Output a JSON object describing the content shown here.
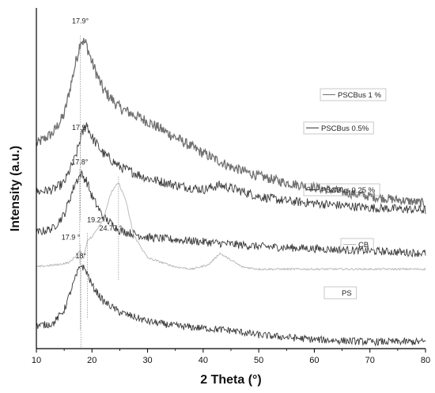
{
  "chart_data": {
    "type": "line",
    "xlabel": "2 Theta (°)",
    "ylabel": "Intensity (a.u.)",
    "xlim": [
      10,
      80
    ],
    "x_ticks": [
      "10",
      "20",
      "30",
      "40",
      "50",
      "60",
      "70",
      "80"
    ],
    "y_ticks_shown": false,
    "grid": false,
    "series": [
      {
        "name": "PSCBus 1 %",
        "color": "#707070",
        "x": [
          10,
          13,
          15,
          17,
          18,
          19,
          20,
          22,
          25,
          30,
          35,
          40,
          45,
          50,
          55,
          60,
          70,
          80
        ],
        "y": [
          9.0,
          9.5,
          10.3,
          12.5,
          13.6,
          13.4,
          12.6,
          11.4,
          10.6,
          10.0,
          9.3,
          8.6,
          8.0,
          7.6,
          7.3,
          7.1,
          6.7,
          6.4
        ]
      },
      {
        "name": "PSCBus 0.5%",
        "color": "#3a3a3a",
        "x": [
          10,
          13,
          15,
          17,
          18,
          19,
          20,
          22,
          25,
          30,
          35,
          40,
          43,
          46,
          50,
          55,
          60,
          70,
          80
        ],
        "y": [
          6.9,
          7.0,
          7.3,
          8.4,
          9.3,
          9.9,
          9.3,
          8.6,
          8.0,
          7.5,
          7.2,
          7.0,
          7.2,
          7.0,
          6.7,
          6.5,
          6.4,
          6.2,
          6.1
        ]
      },
      {
        "name": "PSCBus 0.25 %",
        "color": "#3a3a3a",
        "x": [
          10,
          13,
          15,
          17,
          18,
          19,
          20,
          22,
          25,
          30,
          35,
          40,
          45,
          50,
          60,
          70,
          80
        ],
        "y": [
          5.1,
          5.3,
          5.9,
          7.3,
          7.7,
          7.4,
          6.7,
          5.8,
          5.2,
          4.9,
          4.8,
          4.7,
          4.6,
          4.5,
          4.4,
          4.3,
          4.2
        ]
      },
      {
        "name": "CB",
        "color": "#b5b5b5",
        "x": [
          10,
          14,
          16,
          17.9,
          18.5,
          19.2,
          20,
          22,
          23.5,
          24.77,
          26,
          27.5,
          30,
          35,
          38,
          41,
          43,
          45,
          47,
          50,
          55,
          60,
          70,
          80
        ],
        "y": [
          3.6,
          3.7,
          3.8,
          4.3,
          4.0,
          4.8,
          4.9,
          5.7,
          6.9,
          7.3,
          6.6,
          5.0,
          4.0,
          3.6,
          3.5,
          3.7,
          4.2,
          3.9,
          3.6,
          3.5,
          3.5,
          3.5,
          3.5,
          3.5
        ]
      },
      {
        "name": "PS",
        "color": "#3a3a3a",
        "x": [
          10,
          13,
          15,
          17,
          18,
          19,
          20,
          22,
          25,
          30,
          35,
          40,
          45,
          50,
          60,
          70,
          80
        ],
        "y": [
          1.0,
          1.1,
          1.7,
          3.1,
          3.7,
          3.4,
          2.8,
          2.1,
          1.6,
          1.2,
          1.0,
          0.9,
          0.8,
          0.6,
          0.4,
          0.3,
          0.3
        ]
      }
    ],
    "annotations": [
      {
        "text": "17.9°",
        "x": 17.9,
        "series": "PSCBus 1 %"
      },
      {
        "text": "17.9°",
        "x": 17.9,
        "series": "PSCBus 0.5%"
      },
      {
        "text": "17.8°",
        "x": 17.8,
        "series": "PSCBus 0.25 %"
      },
      {
        "text": "17.9 °",
        "x": 17.9,
        "series": "CB"
      },
      {
        "text": "19.2°",
        "x": 19.2,
        "series": "CB"
      },
      {
        "text": "24.77 °",
        "x": 24.77,
        "series": "CB"
      },
      {
        "text": "18°",
        "x": 18.0,
        "series": "PS"
      }
    ]
  }
}
